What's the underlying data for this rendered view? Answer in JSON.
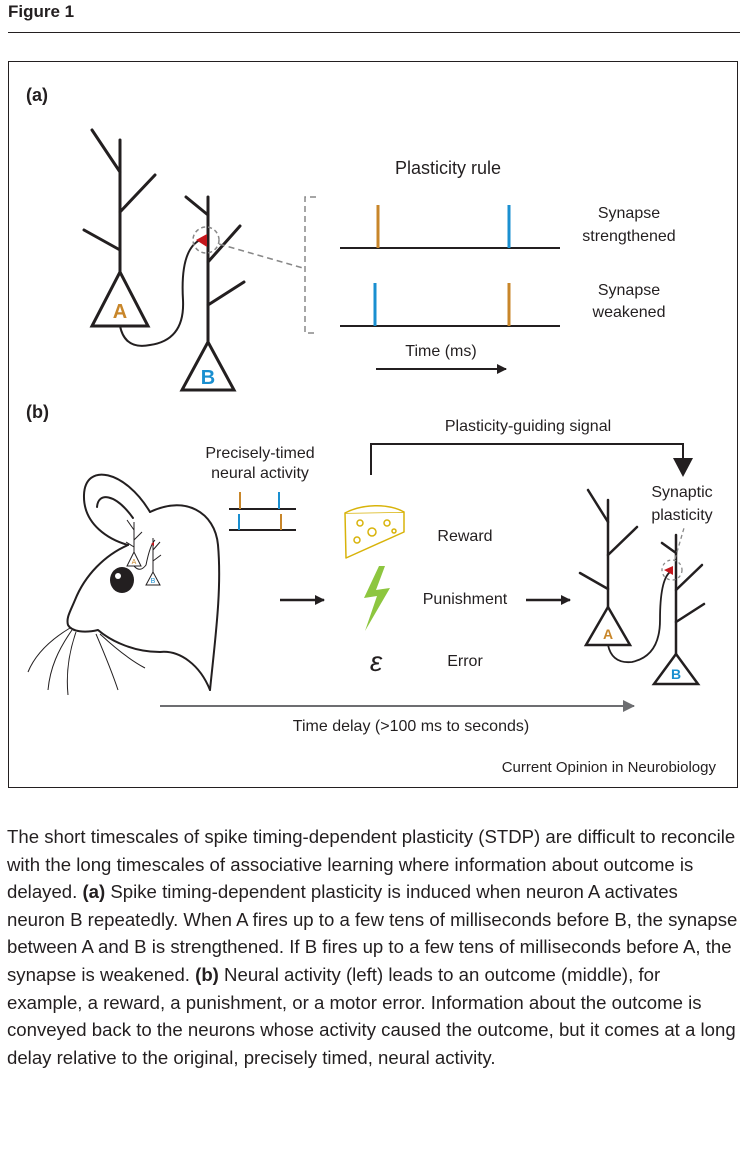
{
  "header": {
    "figure_label": "Figure 1"
  },
  "panel_a": {
    "label": "(a)",
    "rule_title": "Plasticity rule",
    "row1_label_line1": "Synapse",
    "row1_label_line2": "strengthened",
    "row2_label_line1": "Synapse",
    "row2_label_line2": "weakened",
    "time_label": "Time (ms)",
    "neuron_a": "A",
    "neuron_b": "B"
  },
  "panel_b": {
    "label": "(b)",
    "signal_label": "Plasticity-guiding signal",
    "activity_label_line1": "Precisely-timed",
    "activity_label_line2": "neural activity",
    "reward_label": "Reward",
    "punishment_label": "Punishment",
    "error_symbol": "ε",
    "error_label": "Error",
    "synaptic_label_line1": "Synaptic",
    "synaptic_label_line2": "plasticity",
    "delay_label": "Time delay (>100 ms to seconds)",
    "mini_a": "A",
    "mini_b": "B",
    "neuron_a": "A",
    "neuron_b": "B"
  },
  "credit": "Current Opinion in Neurobiology",
  "caption": {
    "intro": "The short timescales of spike timing-dependent plasticity (STDP) are difficult to reconcile with the long timescales of associative learning where information about outcome is delayed.",
    "a_label": "(a)",
    "a_text": "Spike timing-dependent plasticity is induced when neuron A activates neuron B repeatedly. When A fires up to a few tens of milliseconds before B, the synapse between A and B is strengthened. If B fires up to a few tens of milliseconds before A, the synapse is weakened.",
    "b_label": "(b)",
    "b_text": "Neural activity (left) leads to an outcome (middle), for example, a reward, a punishment, or a motor error. Information about the outcome is conveyed back to the neurons whose activity caused the outcome, but it comes at a long delay relative to the original, precisely timed, neural activity."
  },
  "colors": {
    "neuron_a": "#c8862a",
    "neuron_b": "#1a8fd0",
    "synapse": "#c4161c",
    "reward": "#f2d21b",
    "punishment": "#8dc63f"
  }
}
